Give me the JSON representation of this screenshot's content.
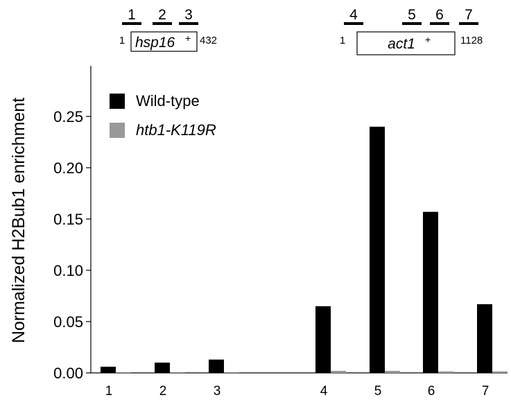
{
  "chart_data": {
    "type": "bar",
    "ylabel": "Normalized H2Bub1 enrichment",
    "xlabel": "",
    "ylim": [
      0,
      0.3
    ],
    "yticks": [
      "0.00",
      "0.05",
      "0.10",
      "0.15",
      "0.20",
      "0.25"
    ],
    "categories": [
      "1",
      "2",
      "3",
      "4",
      "5",
      "6",
      "7"
    ],
    "series": [
      {
        "name": "Wild-type",
        "color": "#000000",
        "values": [
          0.006,
          0.01,
          0.013,
          0.065,
          0.24,
          0.157,
          0.067
        ]
      },
      {
        "name": "htb1-K119R",
        "color": "#999999",
        "values": [
          0.0008,
          0.0008,
          0.0008,
          0.002,
          0.002,
          0.0015,
          0.0015
        ]
      }
    ],
    "legend": {
      "position": "top-left"
    }
  },
  "gene_map": {
    "hsp16": {
      "name": "hsp16",
      "superscript": "+",
      "start": "1",
      "end": "432",
      "regions": [
        "1",
        "2",
        "3"
      ]
    },
    "act1": {
      "name": "act1",
      "superscript": "+",
      "start": "1",
      "end": "1128",
      "regions": [
        "4",
        "5",
        "6",
        "7"
      ]
    }
  }
}
